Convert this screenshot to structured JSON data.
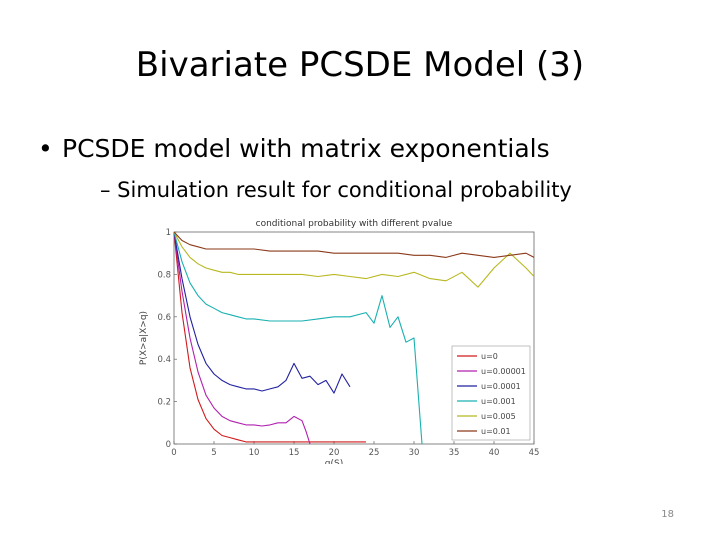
{
  "slide": {
    "title": "Bivariate PCSDE Model (3)",
    "bullet": "PCSDE model with matrix exponentials",
    "sub_bullet": "– Simulation result for conditional probability",
    "slide_number": "18"
  },
  "chart_data": {
    "type": "line",
    "title": "conditional probability with different pvalue",
    "xlabel": "q(S)",
    "ylabel": "P(X>a|X>q)",
    "xlim": [
      0,
      45
    ],
    "ylim": [
      0,
      1
    ],
    "x_ticks": [
      "0",
      "5",
      "10",
      "15",
      "20",
      "25",
      "30",
      "35",
      "40",
      "45"
    ],
    "y_ticks": [
      "0",
      "0.2",
      "0.4",
      "0.6",
      "0.8",
      "1"
    ],
    "legend_position": "lower-right",
    "series": [
      {
        "name": "u=0",
        "color": "#d01a1a",
        "x": [
          0,
          1,
          2,
          3,
          4,
          5,
          6,
          7,
          8,
          9,
          10,
          12,
          14,
          16,
          18,
          20,
          22,
          24
        ],
        "y": [
          1,
          0.62,
          0.36,
          0.21,
          0.12,
          0.07,
          0.04,
          0.03,
          0.02,
          0.01,
          0.01,
          0.01,
          0.01,
          0.01,
          0.01,
          0.01,
          0.01,
          0.01
        ]
      },
      {
        "name": "u=0.00001",
        "color": "#b020b0",
        "x": [
          0,
          1,
          2,
          3,
          4,
          5,
          6,
          7,
          8,
          9,
          10,
          11,
          12,
          13,
          14,
          15,
          16,
          16.5,
          17
        ],
        "y": [
          1,
          0.72,
          0.5,
          0.34,
          0.23,
          0.17,
          0.13,
          0.11,
          0.1,
          0.09,
          0.09,
          0.085,
          0.09,
          0.1,
          0.1,
          0.13,
          0.11,
          0.06,
          0
        ]
      },
      {
        "name": "u=0.0001",
        "color": "#2222a0",
        "x": [
          0,
          1,
          2,
          3,
          4,
          5,
          6,
          7,
          8,
          9,
          10,
          11,
          12,
          13,
          14,
          15,
          16,
          17,
          18,
          19,
          20,
          21,
          22
        ],
        "y": [
          1,
          0.78,
          0.6,
          0.47,
          0.38,
          0.33,
          0.3,
          0.28,
          0.27,
          0.26,
          0.26,
          0.25,
          0.26,
          0.27,
          0.3,
          0.38,
          0.31,
          0.32,
          0.28,
          0.3,
          0.24,
          0.33,
          0.27
        ]
      },
      {
        "name": "u=0.001",
        "color": "#1ab0b0",
        "x": [
          0,
          1,
          2,
          3,
          4,
          5,
          6,
          7,
          8,
          9,
          10,
          12,
          14,
          16,
          18,
          20,
          22,
          24,
          25,
          26,
          27,
          28,
          29,
          30,
          31
        ],
        "y": [
          1,
          0.86,
          0.76,
          0.7,
          0.66,
          0.64,
          0.62,
          0.61,
          0.6,
          0.59,
          0.59,
          0.58,
          0.58,
          0.58,
          0.59,
          0.6,
          0.6,
          0.62,
          0.57,
          0.7,
          0.55,
          0.6,
          0.48,
          0.5,
          0
        ]
      },
      {
        "name": "u=0.005",
        "color": "#b8b820",
        "x": [
          0,
          1,
          2,
          3,
          4,
          5,
          6,
          7,
          8,
          10,
          12,
          14,
          16,
          18,
          20,
          22,
          24,
          26,
          28,
          30,
          32,
          34,
          36,
          38,
          40,
          42,
          44,
          45
        ],
        "y": [
          1,
          0.93,
          0.88,
          0.85,
          0.83,
          0.82,
          0.81,
          0.81,
          0.8,
          0.8,
          0.8,
          0.8,
          0.8,
          0.79,
          0.8,
          0.79,
          0.78,
          0.8,
          0.79,
          0.81,
          0.78,
          0.77,
          0.81,
          0.74,
          0.83,
          0.9,
          0.83,
          0.79
        ]
      },
      {
        "name": "u=0.01",
        "color": "#8b3a1a",
        "x": [
          0,
          1,
          2,
          3,
          4,
          5,
          6,
          8,
          10,
          12,
          14,
          16,
          18,
          20,
          22,
          24,
          26,
          28,
          30,
          32,
          34,
          36,
          38,
          40,
          42,
          44,
          45
        ],
        "y": [
          1,
          0.96,
          0.94,
          0.93,
          0.92,
          0.92,
          0.92,
          0.92,
          0.92,
          0.91,
          0.91,
          0.91,
          0.91,
          0.9,
          0.9,
          0.9,
          0.9,
          0.9,
          0.89,
          0.89,
          0.88,
          0.9,
          0.89,
          0.88,
          0.89,
          0.9,
          0.88
        ]
      }
    ]
  }
}
